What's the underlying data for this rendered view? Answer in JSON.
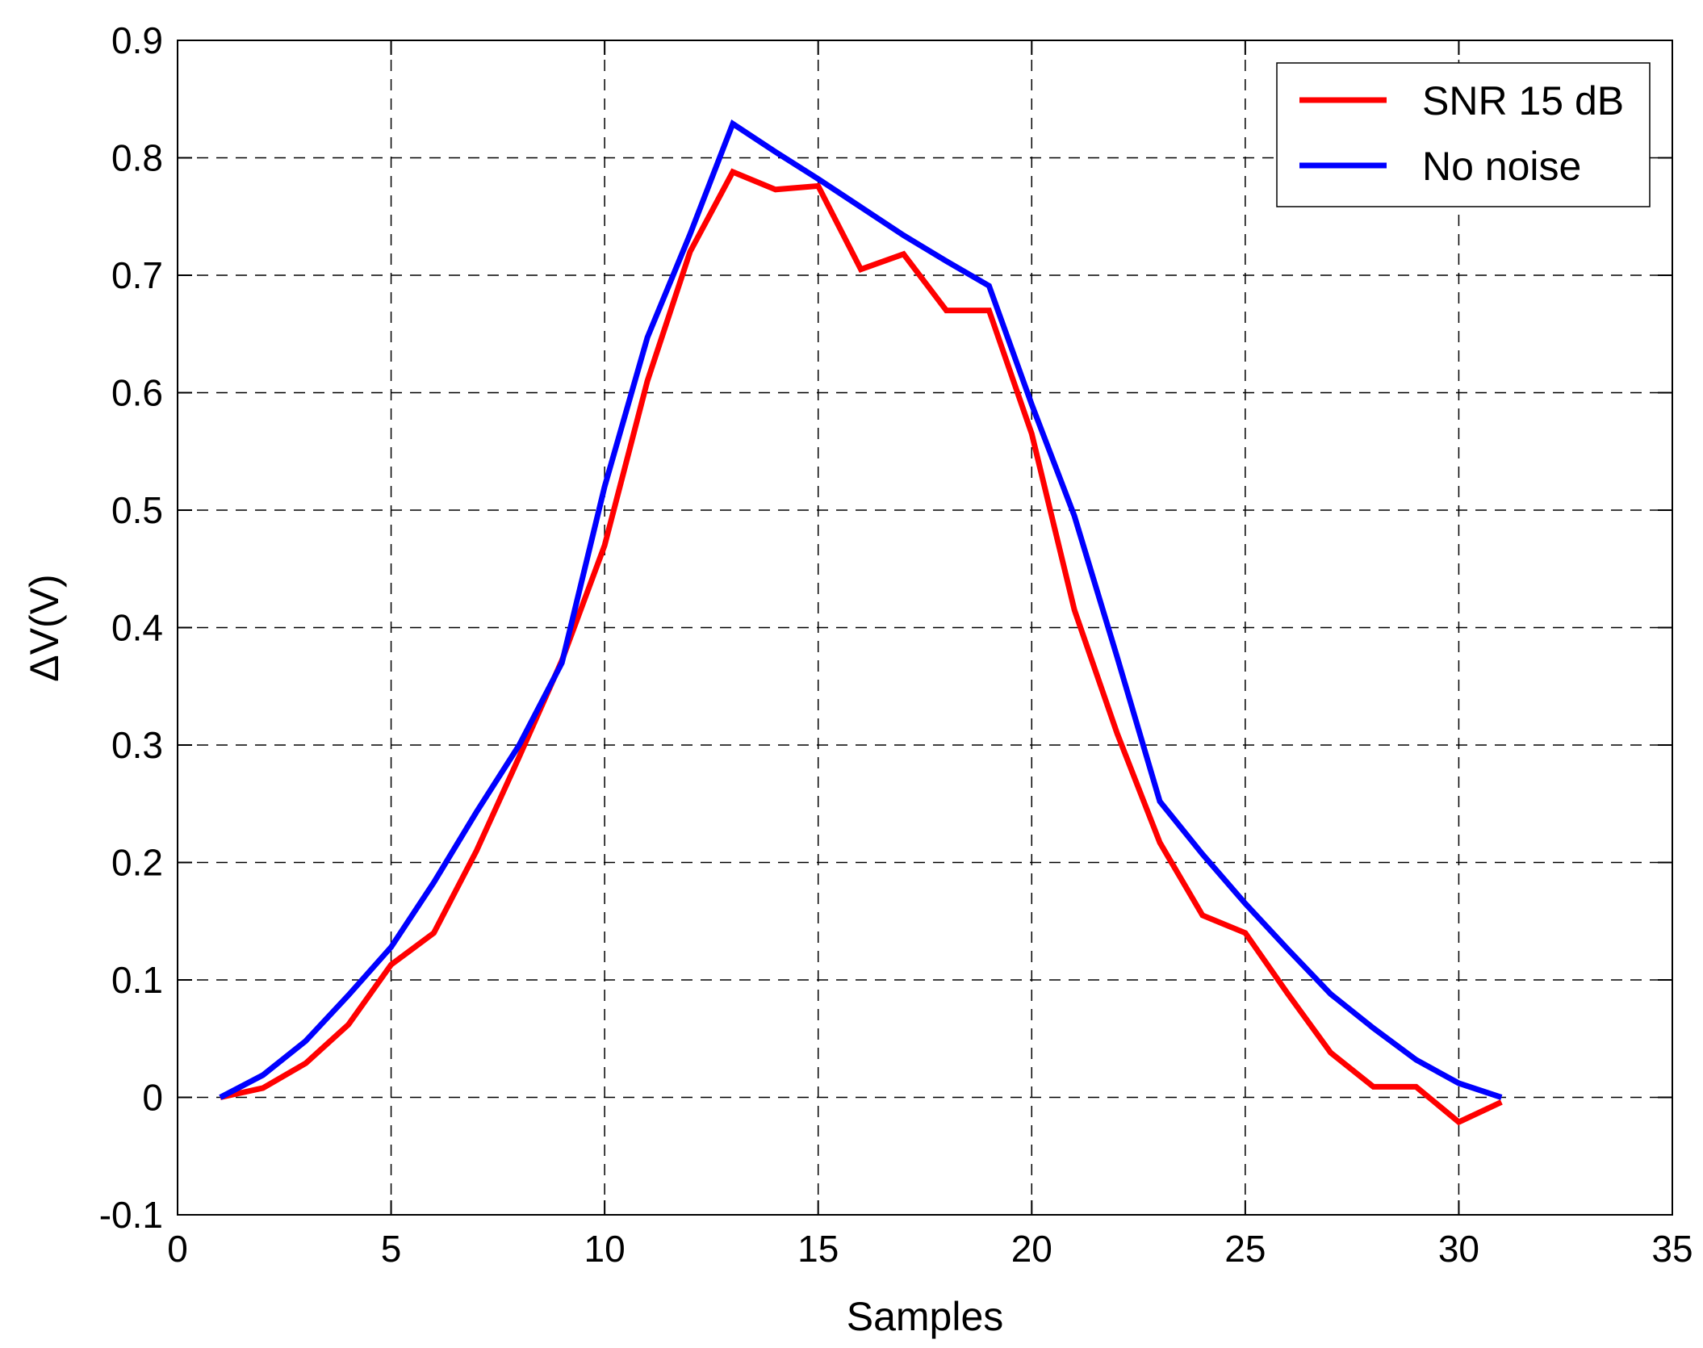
{
  "chart_data": {
    "type": "line",
    "title": "",
    "xlabel": "Samples",
    "ylabel": "ΔV(V)",
    "xlim": [
      0,
      35
    ],
    "ylim": [
      -0.1,
      0.9
    ],
    "xticks": [
      0,
      5,
      10,
      15,
      20,
      25,
      30,
      35
    ],
    "yticks": [
      -0.1,
      0,
      0.1,
      0.2,
      0.3,
      0.4,
      0.5,
      0.6,
      0.7,
      0.8,
      0.9
    ],
    "xtick_labels": [
      "0",
      "5",
      "10",
      "15",
      "20",
      "25",
      "30",
      "35"
    ],
    "ytick_labels": [
      "-0.1",
      "0",
      "0.1",
      "0.2",
      "0.3",
      "0.4",
      "0.5",
      "0.6",
      "0.7",
      "0.8",
      "0.9"
    ],
    "grid": true,
    "legend_position": "top-right",
    "x": [
      1,
      2,
      3,
      4,
      5,
      6,
      7,
      8,
      9,
      10,
      11,
      12,
      13,
      14,
      15,
      16,
      17,
      18,
      19,
      20,
      21,
      22,
      23,
      24,
      25,
      26,
      27,
      28,
      29,
      30,
      31
    ],
    "series": [
      {
        "name": "SNR 15 dB",
        "color": "#ff0000",
        "values": [
          0.0,
          0.008,
          0.029,
          0.062,
          0.113,
          0.14,
          0.21,
          0.29,
          0.372,
          0.47,
          0.61,
          0.72,
          0.788,
          0.773,
          0.776,
          0.705,
          0.718,
          0.67,
          0.67,
          0.565,
          0.415,
          0.31,
          0.217,
          0.155,
          0.14,
          0.088,
          0.038,
          0.009,
          0.009,
          -0.021,
          -0.004
        ]
      },
      {
        "name": "No noise",
        "color": "#0000ff",
        "values": [
          0.0,
          0.019,
          0.048,
          0.087,
          0.128,
          0.183,
          0.243,
          0.3,
          0.37,
          0.52,
          0.647,
          0.735,
          0.829,
          0.805,
          0.782,
          0.758,
          0.734,
          0.712,
          0.691,
          0.59,
          0.495,
          0.375,
          0.252,
          0.207,
          0.165,
          0.126,
          0.088,
          0.059,
          0.032,
          0.012,
          0.0
        ]
      }
    ]
  }
}
